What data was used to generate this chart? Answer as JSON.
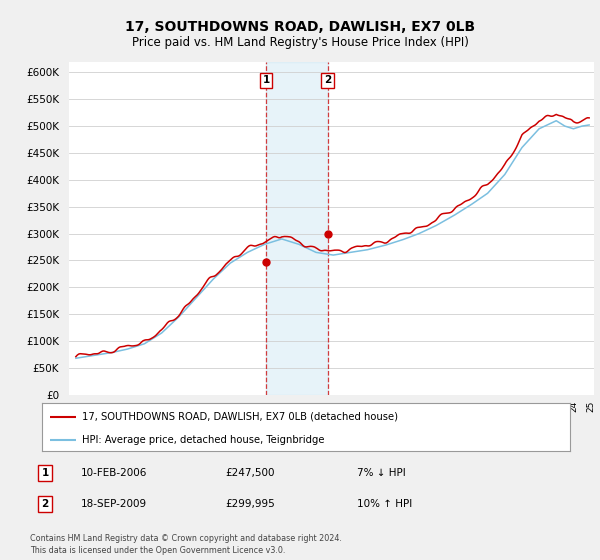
{
  "title": "17, SOUTHDOWNS ROAD, DAWLISH, EX7 0LB",
  "subtitle": "Price paid vs. HM Land Registry's House Price Index (HPI)",
  "yticks": [
    0,
    50000,
    100000,
    150000,
    200000,
    250000,
    300000,
    350000,
    400000,
    450000,
    500000,
    550000,
    600000
  ],
  "hpi_color": "#7bbfe0",
  "price_color": "#cc0000",
  "background_color": "#f0f0f0",
  "plot_bg_color": "#ffffff",
  "legend1": "17, SOUTHDOWNS ROAD, DAWLISH, EX7 0LB (detached house)",
  "legend2": "HPI: Average price, detached house, Teignbridge",
  "sale1_label": "1",
  "sale1_date": "10-FEB-2006",
  "sale1_price": "£247,500",
  "sale1_hpi": "7% ↓ HPI",
  "sale2_label": "2",
  "sale2_date": "18-SEP-2009",
  "sale2_price": "£299,995",
  "sale2_hpi": "10% ↑ HPI",
  "footnote": "Contains HM Land Registry data © Crown copyright and database right 2024.\nThis data is licensed under the Open Government Licence v3.0.",
  "sale1_x": 2006.083,
  "sale1_y": 247500,
  "sale2_x": 2009.667,
  "sale2_y": 299995,
  "shade_x1": 2006.083,
  "shade_x2": 2009.667,
  "xmin": 1994.6,
  "xmax": 2025.2,
  "ymin": 0,
  "ymax": 620000
}
